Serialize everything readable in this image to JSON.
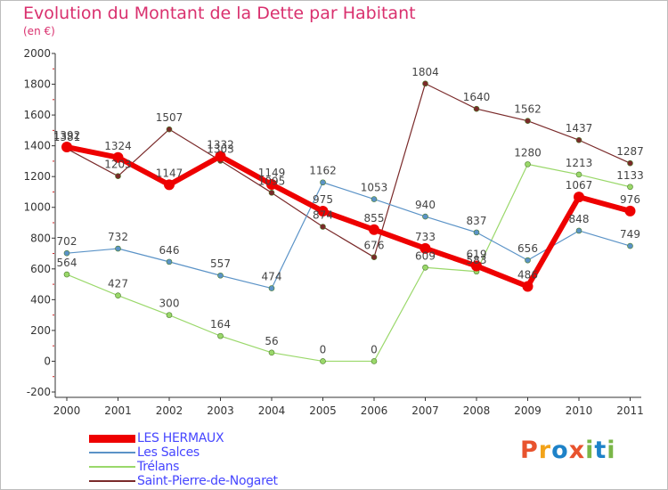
{
  "title": "Evolution du Montant de la Dette par Habitant",
  "subtitle": "(en €)",
  "logo": {
    "text": "Proxiti",
    "letters": [
      "P",
      "r",
      "o",
      "x",
      "i",
      "t",
      "i"
    ],
    "colors": [
      "#e8532e",
      "#f2a31a",
      "#1e82c8",
      "#e8532e",
      "#7ab648",
      "#1e82c8",
      "#7ab648"
    ]
  },
  "chart_data": {
    "type": "line",
    "categories": [
      "2000",
      "2001",
      "2002",
      "2003",
      "2004",
      "2005",
      "2006",
      "2007",
      "2008",
      "2009",
      "2010",
      "2011"
    ],
    "ylim": [
      -200,
      2000
    ],
    "yticks": [
      -200,
      0,
      200,
      400,
      600,
      800,
      1000,
      1200,
      1400,
      1600,
      1800,
      2000
    ],
    "grid": false,
    "legend_position": "bottom-left",
    "series": [
      {
        "name": "Saint-Pierre-de-Nogaret",
        "color": "#7a2a2a",
        "width": 1.2,
        "values": [
          1381,
          1203,
          1507,
          1303,
          1095,
          874,
          676,
          1804,
          1640,
          1562,
          1437,
          1287
        ],
        "labels": [
          "1381",
          "1203",
          "1507",
          "1303",
          "1095",
          "874",
          "676",
          "1804",
          "1640",
          "1562",
          "1437",
          "1287"
        ]
      },
      {
        "name": "Trélans",
        "color": "#9ad86a",
        "width": 1.2,
        "values": [
          564,
          427,
          300,
          164,
          56,
          0,
          0,
          609,
          583,
          1280,
          1213,
          1133
        ],
        "labels": [
          "564",
          "427",
          "300",
          "164",
          "56",
          "0",
          "0",
          "609",
          "583",
          "1280",
          "1213",
          "1133"
        ]
      },
      {
        "name": "Les Salces",
        "color": "#5b93c7",
        "width": 1.2,
        "values": [
          702,
          732,
          646,
          557,
          474,
          1162,
          1053,
          940,
          837,
          656,
          848,
          749
        ],
        "labels": [
          "702",
          "732",
          "646",
          "557",
          "474",
          "1162",
          "1053",
          "940",
          "837",
          "656",
          "848",
          "749"
        ]
      },
      {
        "name": "LES HERMAUX",
        "color": "#ee0000",
        "width": 6,
        "values": [
          1392,
          1324,
          1147,
          1332,
          1149,
          975,
          855,
          733,
          619,
          486,
          1067,
          976
        ],
        "labels": [
          "1392",
          "1324",
          "1147",
          "1332",
          "1149",
          "975",
          "855",
          "733",
          "619",
          "486",
          "1067",
          "976"
        ]
      }
    ],
    "legend_order": [
      "LES HERMAUX",
      "Les Salces",
      "Trélans",
      "Saint-Pierre-de-Nogaret"
    ]
  }
}
